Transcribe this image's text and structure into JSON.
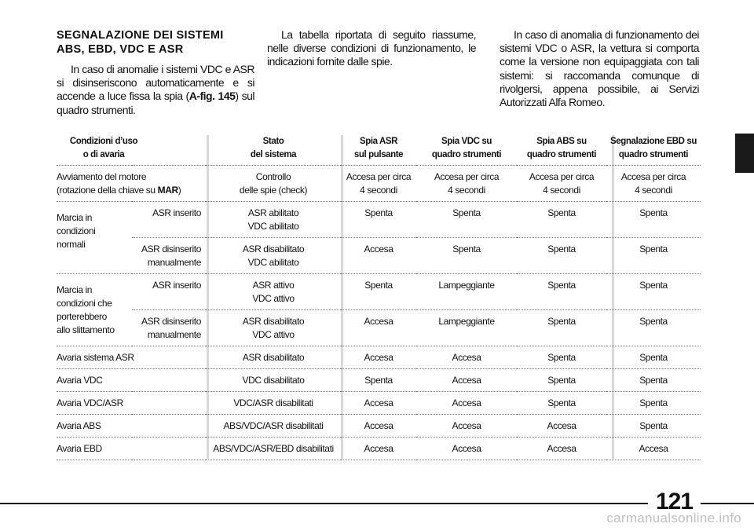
{
  "columns": {
    "left": {
      "title_line1": "SEGNALAZIONE DEI SISTEMI",
      "title_line2": "ABS, EBD, VDC E ASR",
      "body_before_ref": "In caso di anomalie i sistemi VDC e ASR si disinseriscono automaticamente e si accende a luce fissa la spia (",
      "ref": "A-fig. 145",
      "body_after_ref": ") sul quadro strumenti."
    },
    "middle": {
      "body": "La tabella riportata di seguito riassume, nelle diverse condizioni di funzionamento, le indicazioni fornite dalle spie."
    },
    "right": {
      "body": "In caso di anomalia di funzionamento dei sistemi VDC o ASR, la vettura si comporta come la versione non equipaggiata con tali sistemi: si raccomanda comunque di rivolgersi, appena possibile, ai Servizi Autorizzati Alfa Romeo."
    }
  },
  "table": {
    "headers": {
      "cond_l1": "Condizioni d’uso",
      "cond_l2": "o di avaria",
      "stato_l1": "Stato",
      "stato_l2": "del sistema",
      "asr_l1": "Spia ASR",
      "asr_l2": "sul pulsante",
      "vdc_l1": "Spia VDC su",
      "vdc_l2": "quadro strumenti",
      "abs_l1": "Spia ABS su",
      "abs_l2": "quadro strumenti",
      "ebd_l1": "Segnalazione EBD su",
      "ebd_l2": "quadro strumenti"
    },
    "avviamento": {
      "cond_l1": "Avviamento del motore",
      "cond_l2_pre": "(rotazione della chiave su ",
      "cond_l2_bold": "MAR",
      "cond_l2_post": ")",
      "stato_l1": "Controllo",
      "stato_l2": "delle spie (check)",
      "asr_l1": "Accesa per circa",
      "asr_l2": "4 secondi",
      "vdc_l1": "Accesa per circa",
      "vdc_l2": "4 secondi",
      "abs_l1": "Accesa per circa",
      "abs_l2": "4 secondi",
      "ebd_l1": "Accesa per circa",
      "ebd_l2": "4 secondi"
    },
    "normali": {
      "group_l1": "Marcia in",
      "group_l2": "condizioni",
      "group_l3": "normali",
      "rows": [
        {
          "sub_l1": "ASR inserito",
          "sub_l2": "",
          "stato_l1": "ASR abilitato",
          "stato_l2": "VDC abilitato",
          "asr": "Spenta",
          "vdc": "Spenta",
          "abs": "Spenta",
          "ebd": "Spenta"
        },
        {
          "sub_l1": "ASR disinserito",
          "sub_l2": "manualmente",
          "stato_l1": "ASR disabilitato",
          "stato_l2": "VDC abilitato",
          "asr": "Accesa",
          "vdc": "Spenta",
          "abs": "Spenta",
          "ebd": "Spenta"
        }
      ]
    },
    "slittamento": {
      "group_l1": "Marcia in",
      "group_l2": "condizioni che",
      "group_l3": "porterebbero",
      "group_l4": "allo slittamento",
      "rows": [
        {
          "sub_l1": "ASR inserito",
          "sub_l2": "",
          "stato_l1": "ASR attivo",
          "stato_l2": "VDC attivo",
          "asr": "Spenta",
          "vdc": "Lampeggiante",
          "abs": "Spenta",
          "ebd": "Spenta"
        },
        {
          "sub_l1": "ASR disinserito",
          "sub_l2": "manualmente",
          "stato_l1": "ASR disabilitato",
          "stato_l2": "VDC attivo",
          "asr": "Accesa",
          "vdc": "Lampeggiante",
          "abs": "Spenta",
          "ebd": "Spenta"
        }
      ]
    },
    "avarie": [
      {
        "cond": "Avaria sistema ASR",
        "stato": "ASR disabilitato",
        "asr": "Accesa",
        "vdc": "Accesa",
        "abs": "Spenta",
        "ebd": "Spenta"
      },
      {
        "cond": "Avaria VDC",
        "stato": "VDC disabilitato",
        "asr": "Spenta",
        "vdc": "Accesa",
        "abs": "Spenta",
        "ebd": "Spenta"
      },
      {
        "cond": "Avaria VDC/ASR",
        "stato": "VDC/ASR disabilitati",
        "asr": "Accesa",
        "vdc": "Accesa",
        "abs": "Spenta",
        "ebd": "Spenta"
      },
      {
        "cond": "Avaria ABS",
        "stato": "ABS/VDC/ASR disabilitati",
        "asr": "Accesa",
        "vdc": "Accesa",
        "abs": "Accesa",
        "ebd": "Spenta"
      },
      {
        "cond": "Avaria EBD",
        "stato": "ABS/VDC/ASR/EBD disabilitati",
        "asr": "Accesa",
        "vdc": "Accesa",
        "abs": "Accesa",
        "ebd": "Accesa"
      }
    ]
  },
  "footer": {
    "page_number": "121",
    "watermark": "carmanualsonline.info"
  }
}
